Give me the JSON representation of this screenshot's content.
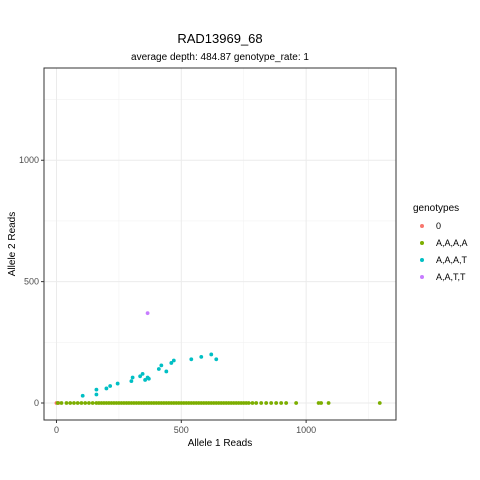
{
  "chart_data": {
    "type": "scatter",
    "title": "RAD13969_68",
    "subtitle": "average depth:  484.87  genotype_rate:  1",
    "xlabel": "Allele 1 Reads",
    "ylabel": "Allele 2 Reads",
    "xlim": [
      -50,
      1360
    ],
    "ylim": [
      -70,
      1380
    ],
    "x_ticks": [
      0,
      500,
      1000
    ],
    "y_ticks": [
      0,
      500,
      1000
    ],
    "x_minor": [
      250,
      750,
      1250
    ],
    "y_minor": [
      250,
      750,
      1250
    ],
    "grid": true,
    "legend_position": "right",
    "legend_title": "genotypes",
    "series": [
      {
        "name": "0",
        "color": "#F8766D",
        "points": [
          [
            0,
            0
          ],
          [
            8,
            0
          ]
        ]
      },
      {
        "name": "A,A,A,A",
        "color": "#7CAE00",
        "points": [
          [
            5,
            0
          ],
          [
            20,
            0
          ],
          [
            40,
            0
          ],
          [
            55,
            0
          ],
          [
            70,
            0
          ],
          [
            85,
            0
          ],
          [
            100,
            0
          ],
          [
            115,
            0
          ],
          [
            130,
            0
          ],
          [
            145,
            0
          ],
          [
            160,
            0
          ],
          [
            170,
            0
          ],
          [
            180,
            0
          ],
          [
            190,
            0
          ],
          [
            200,
            0
          ],
          [
            210,
            0
          ],
          [
            220,
            0
          ],
          [
            230,
            0
          ],
          [
            240,
            0
          ],
          [
            250,
            0
          ],
          [
            260,
            0
          ],
          [
            270,
            0
          ],
          [
            280,
            0
          ],
          [
            290,
            0
          ],
          [
            300,
            0
          ],
          [
            310,
            0
          ],
          [
            320,
            0
          ],
          [
            330,
            0
          ],
          [
            340,
            0
          ],
          [
            350,
            0
          ],
          [
            360,
            0
          ],
          [
            370,
            0
          ],
          [
            380,
            0
          ],
          [
            390,
            0
          ],
          [
            400,
            0
          ],
          [
            410,
            0
          ],
          [
            420,
            0
          ],
          [
            430,
            0
          ],
          [
            440,
            0
          ],
          [
            450,
            0
          ],
          [
            460,
            0
          ],
          [
            470,
            0
          ],
          [
            480,
            0
          ],
          [
            490,
            0
          ],
          [
            500,
            0
          ],
          [
            510,
            0
          ],
          [
            520,
            0
          ],
          [
            530,
            0
          ],
          [
            540,
            0
          ],
          [
            550,
            0
          ],
          [
            560,
            0
          ],
          [
            570,
            0
          ],
          [
            580,
            0
          ],
          [
            590,
            0
          ],
          [
            600,
            0
          ],
          [
            610,
            0
          ],
          [
            620,
            0
          ],
          [
            630,
            0
          ],
          [
            640,
            0
          ],
          [
            650,
            0
          ],
          [
            660,
            0
          ],
          [
            670,
            0
          ],
          [
            680,
            0
          ],
          [
            690,
            0
          ],
          [
            700,
            0
          ],
          [
            710,
            0
          ],
          [
            720,
            0
          ],
          [
            730,
            0
          ],
          [
            740,
            0
          ],
          [
            750,
            0
          ],
          [
            760,
            0
          ],
          [
            770,
            0
          ],
          [
            785,
            0
          ],
          [
            800,
            0
          ],
          [
            820,
            0
          ],
          [
            840,
            0
          ],
          [
            860,
            0
          ],
          [
            880,
            0
          ],
          [
            900,
            0
          ],
          [
            920,
            0
          ],
          [
            960,
            0
          ],
          [
            1050,
            0
          ],
          [
            1060,
            0
          ],
          [
            1090,
            0
          ],
          [
            1295,
            0
          ]
        ]
      },
      {
        "name": "A,A,A,T",
        "color": "#00BFC4",
        "points": [
          [
            105,
            30
          ],
          [
            160,
            35
          ],
          [
            160,
            55
          ],
          [
            200,
            60
          ],
          [
            215,
            70
          ],
          [
            245,
            80
          ],
          [
            300,
            90
          ],
          [
            305,
            105
          ],
          [
            335,
            110
          ],
          [
            345,
            120
          ],
          [
            355,
            95
          ],
          [
            365,
            105
          ],
          [
            370,
            100
          ],
          [
            410,
            140
          ],
          [
            420,
            155
          ],
          [
            440,
            130
          ],
          [
            460,
            165
          ],
          [
            470,
            175
          ],
          [
            540,
            180
          ],
          [
            580,
            190
          ],
          [
            620,
            200
          ],
          [
            640,
            180
          ]
        ]
      },
      {
        "name": "A,A,T,T",
        "color": "#C77CFF",
        "points": [
          [
            365,
            370
          ]
        ]
      }
    ]
  }
}
